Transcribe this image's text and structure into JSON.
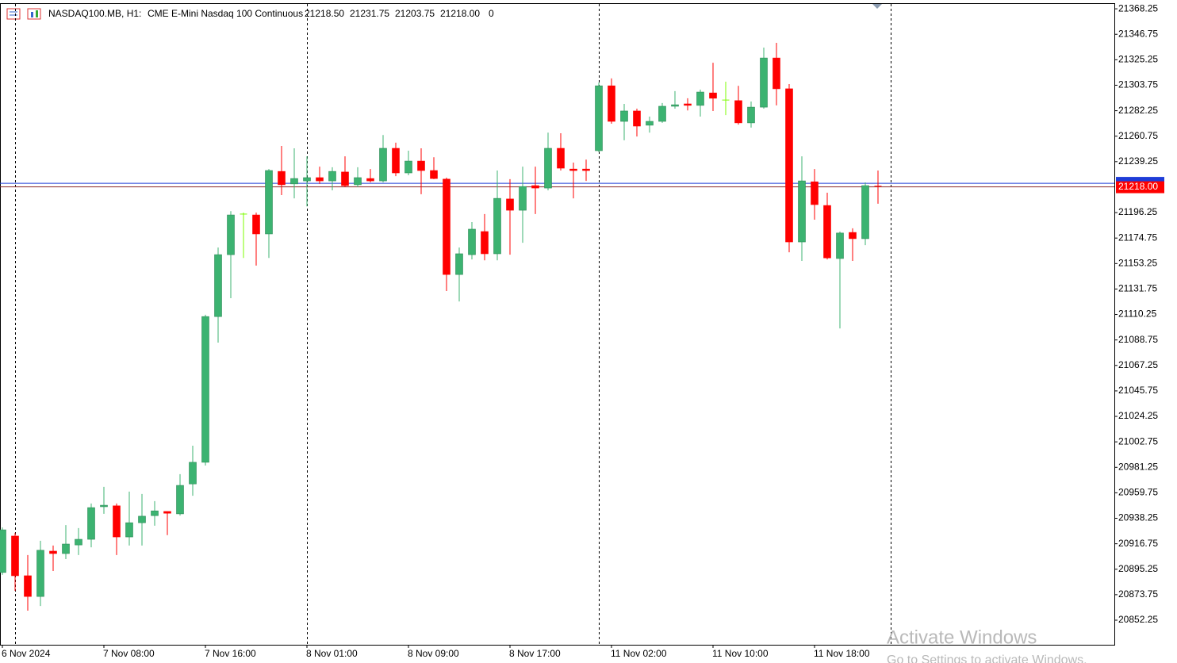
{
  "chart_data": {
    "type": "candlestick",
    "header": {
      "symbol": "NASDAQ100.MB, H1:",
      "description": "CME E-Mini Nasdaq 100 Continuous",
      "ohlc": [
        "21218.50",
        "21231.75",
        "21203.75",
        "21218.00"
      ],
      "volume": "0"
    },
    "categories": [
      "6 Nov 2024",
      null,
      null,
      null,
      null,
      null,
      null,
      null,
      "7 Nov 08:00",
      null,
      null,
      null,
      null,
      null,
      null,
      null,
      "7 Nov 16:00",
      null,
      null,
      null,
      null,
      null,
      null,
      null,
      "8 Nov 01:00",
      null,
      null,
      null,
      null,
      null,
      null,
      null,
      "8 Nov 09:00",
      null,
      null,
      null,
      null,
      null,
      null,
      null,
      "8 Nov 17:00",
      null,
      null,
      null,
      null,
      null,
      null,
      null,
      "11 Nov 02:00",
      null,
      null,
      null,
      null,
      null,
      null,
      null,
      "11 Nov 10:00",
      null,
      null,
      null,
      null,
      null,
      null,
      null,
      "11 Nov 18:00",
      null,
      null,
      null,
      null,
      null
    ],
    "candles": [
      [
        20892.5,
        20930.5,
        20890.5,
        20928.5
      ],
      [
        20923.25,
        20926,
        20877,
        20889.75
      ],
      [
        20889.75,
        20907.25,
        20860.25,
        20872.25
      ],
      [
        20872.25,
        20919.25,
        20864.25,
        20911.25
      ],
      [
        20910.5,
        20915.25,
        20893.75,
        20908.5
      ],
      [
        20908.5,
        20932.5,
        20903.75,
        20916.5
      ],
      [
        20915.75,
        20930,
        20907.25,
        20920.5
      ],
      [
        20920.5,
        20950.75,
        20913.75,
        20947.25
      ],
      [
        20948,
        20964.75,
        20942,
        20949.25
      ],
      [
        20948.75,
        20950.75,
        20907.25,
        20922.5
      ],
      [
        20922.5,
        20960.75,
        20915.25,
        20934.5
      ],
      [
        20934.5,
        20958.75,
        20915.25,
        20940
      ],
      [
        20940.5,
        20952.75,
        20932,
        20944.5
      ],
      [
        20944,
        20944,
        20924,
        20942.5
      ],
      [
        20942,
        20975.5,
        20940.5,
        20966
      ],
      [
        20967.25,
        20999.5,
        20957.25,
        20985.5
      ],
      [
        20985.5,
        21110,
        20982.75,
        21108.5
      ],
      [
        21108.5,
        21166.75,
        21086.5,
        21160.75
      ],
      [
        21160.75,
        21197.5,
        21124,
        21194.25
      ],
      [
        21195,
        21196.25,
        21158,
        21195
      ],
      [
        21194.25,
        21196.25,
        21151.5,
        21178.25
      ],
      [
        21178.25,
        21233,
        21158,
        21231.75
      ],
      [
        21231,
        21252.5,
        21211,
        21219.75
      ],
      [
        21220.5,
        21250.5,
        21208.25,
        21225
      ],
      [
        21223,
        21243.75,
        21201.5,
        21225.75
      ],
      [
        21225.75,
        21235,
        21220.5,
        21223
      ],
      [
        21223,
        21234.5,
        21215,
        21231
      ],
      [
        21230.5,
        21243.75,
        21217.75,
        21219
      ],
      [
        21219.75,
        21234.5,
        21217.75,
        21225.75
      ],
      [
        21225,
        21233,
        21221.75,
        21223
      ],
      [
        21223,
        21261.75,
        21221.75,
        21250.5
      ],
      [
        21250.5,
        21255.25,
        21227,
        21229.75
      ],
      [
        21229.75,
        21248.5,
        21227.75,
        21239.75
      ],
      [
        21239.75,
        21250.5,
        21211.75,
        21231.75
      ],
      [
        21231.75,
        21243,
        21224.5,
        21225
      ],
      [
        21224.5,
        21225.75,
        21130,
        21144
      ],
      [
        21144,
        21166.75,
        21121.25,
        21161.5
      ],
      [
        21160.75,
        21188.25,
        21156.75,
        21182.25
      ],
      [
        21180.25,
        21195,
        21156,
        21161.5
      ],
      [
        21161.5,
        21231.75,
        21156,
        21208.25
      ],
      [
        21207.75,
        21224.5,
        21160.75,
        21198.25
      ],
      [
        21198.25,
        21235,
        21170.75,
        21218.25
      ],
      [
        21219,
        21235,
        21195,
        21217
      ],
      [
        21217,
        21263.75,
        21215,
        21250.5
      ],
      [
        21250.5,
        21263.25,
        21231.75,
        21233.75
      ],
      [
        21233,
        21238.5,
        21208.25,
        21231.75
      ],
      [
        21233,
        21241,
        21223,
        21231.75
      ],
      [
        21248.5,
        21306,
        21247.25,
        21303.25
      ],
      [
        21303.25,
        21309.5,
        21271.25,
        21273.25
      ],
      [
        21273.25,
        21288,
        21257.25,
        21282
      ],
      [
        21282,
        21284,
        21260.5,
        21269.25
      ],
      [
        21270,
        21277.25,
        21263.75,
        21273.25
      ],
      [
        21273.25,
        21288.75,
        21272,
        21286
      ],
      [
        21286,
        21298.75,
        21284,
        21287.25
      ],
      [
        21288,
        21292.75,
        21282.5,
        21286.75
      ],
      [
        21286.75,
        21300,
        21277.25,
        21298
      ],
      [
        21297.25,
        21322.75,
        21282,
        21292.75
      ],
      [
        21291.25,
        21306.75,
        21278.5,
        21291.25
      ],
      [
        21290.75,
        21303.25,
        21270.5,
        21272
      ],
      [
        21272,
        21290,
        21268,
        21285.25
      ],
      [
        21285.25,
        21335.5,
        21284,
        21326.75
      ],
      [
        21326.75,
        21339.5,
        21286.75,
        21300.75
      ],
      [
        21300.75,
        21304.75,
        21162.75,
        21171.5
      ],
      [
        21171.5,
        21243.75,
        21155.5,
        21223
      ],
      [
        21222.25,
        21233,
        21190.25,
        21203
      ],
      [
        21202.25,
        21213,
        21156.75,
        21158
      ],
      [
        21157.5,
        21180.25,
        21098.5,
        21179
      ],
      [
        21179.5,
        21183,
        21155.5,
        21174.25
      ],
      [
        21174.25,
        21221.75,
        21168.75,
        21219
      ],
      [
        21218.5,
        21231.75,
        21203.75,
        21218
      ]
    ],
    "up_color": "#3cb371",
    "down_color": "#ff0000",
    "doji_color": "#7cfc00",
    "ylim": [
      20831.5,
      21373
    ],
    "yticks": [
      21368.25,
      21346.75,
      21325.25,
      21303.75,
      21282.25,
      21260.75,
      21239.25,
      21196.25,
      21174.75,
      21153.25,
      21131.75,
      21110.25,
      21088.75,
      21067.25,
      21045.75,
      21024.25,
      21002.75,
      20981.25,
      20959.75,
      20938.25,
      20916.75,
      20895.25,
      20873.75,
      20852.25
    ],
    "bid": {
      "value": 21218,
      "label": "21218.00",
      "color": "#ff0000"
    },
    "ask": {
      "value": 21221,
      "color": "#1e3cd8"
    },
    "period_separators": [
      1,
      24,
      47,
      70
    ],
    "overlay": [
      "Activate Windows",
      "Go to Settings to activate Windows."
    ]
  }
}
